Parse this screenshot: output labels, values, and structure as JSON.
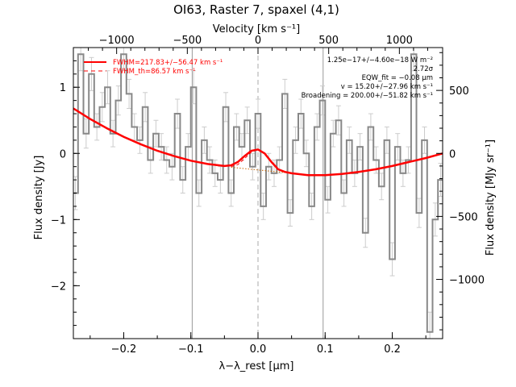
{
  "chart_data": {
    "type": "line",
    "title": "OI63, Raster 7, spaxel (4,1)",
    "xlabel": "λ−λ_rest [μm]",
    "ylabel": "Flux density [Jy]",
    "top_xlabel": "Velocity [km s⁻¹]",
    "right_ylabel": "Flux density [MJy sr⁻¹]",
    "xlim": [
      -0.275,
      0.275
    ],
    "ylim": [
      -2.8,
      1.6
    ],
    "velocity_lim": [
      -1306,
      1306
    ],
    "right_ylim": [
      -1470,
      840
    ],
    "x_ticks": [
      -0.2,
      -0.1,
      0.0,
      0.1,
      0.2
    ],
    "x_tick_labels": [
      "−0.2",
      "−0.1",
      "0.0",
      "0.1",
      "0.2"
    ],
    "y_ticks": [
      -2,
      -1,
      0,
      1
    ],
    "y_tick_labels": [
      "−2",
      "−1",
      "0",
      "1"
    ],
    "velocity_ticks": [
      -1000,
      -500,
      0,
      500,
      1000
    ],
    "velocity_tick_labels": [
      "−1000",
      "−500",
      "0",
      "500",
      "1000"
    ],
    "right_ticks": [
      -1000,
      -500,
      0,
      500
    ],
    "right_tick_labels": [
      "−1000",
      "−500",
      "0",
      "500"
    ],
    "vertical_lines": [
      -0.098,
      0.0,
      0.097
    ],
    "legend": [
      {
        "label": "FWHM=217.83+/−56.47 km s⁻¹",
        "style": "solid",
        "color": "#ff0000"
      },
      {
        "label": "FWHM_th=86.57 km s⁻¹",
        "style": "dashed",
        "color": "#ff0000"
      }
    ],
    "annotations": [
      "1.25e−17+/−4.60e−18 W m⁻²",
      "2.72σ",
      "EQW_fit = −0.08 μm",
      "v = 15.20+/−27.96 km s⁻¹",
      "Broadening = 200.00+/−51.82 km s⁻¹"
    ],
    "series": [
      {
        "name": "spectrum",
        "style": "steps",
        "color": "#888888",
        "x": [
          -0.272,
          -0.264,
          -0.256,
          -0.248,
          -0.24,
          -0.232,
          -0.224,
          -0.216,
          -0.208,
          -0.2,
          -0.192,
          -0.184,
          -0.176,
          -0.168,
          -0.16,
          -0.152,
          -0.144,
          -0.136,
          -0.128,
          -0.12,
          -0.112,
          -0.104,
          -0.096,
          -0.088,
          -0.08,
          -0.072,
          -0.064,
          -0.056,
          -0.048,
          -0.04,
          -0.032,
          -0.024,
          -0.016,
          -0.008,
          0.0,
          0.008,
          0.016,
          0.024,
          0.032,
          0.04,
          0.048,
          0.056,
          0.064,
          0.072,
          0.08,
          0.088,
          0.096,
          0.104,
          0.112,
          0.12,
          0.128,
          0.136,
          0.144,
          0.152,
          0.16,
          0.168,
          0.176,
          0.184,
          0.192,
          0.2,
          0.208,
          0.216,
          0.224,
          0.232,
          0.24,
          0.248,
          0.256,
          0.264,
          0.272
        ],
        "y": [
          -0.6,
          1.5,
          0.3,
          1.2,
          0.4,
          0.7,
          1.0,
          0.3,
          0.8,
          1.5,
          0.9,
          0.4,
          0.2,
          0.7,
          -0.1,
          0.3,
          0.1,
          -0.1,
          -0.2,
          0.6,
          -0.4,
          0.1,
          1.0,
          -0.6,
          0.2,
          -0.1,
          -0.3,
          -0.4,
          0.7,
          -0.6,
          0.4,
          0.1,
          0.5,
          -0.2,
          0.6,
          -0.8,
          -0.2,
          -0.3,
          -0.1,
          0.9,
          -0.9,
          0.2,
          0.6,
          0.0,
          -0.8,
          0.4,
          0.8,
          -0.7,
          0.3,
          0.5,
          -0.6,
          0.2,
          -0.3,
          0.1,
          -1.2,
          0.4,
          -0.1,
          -0.5,
          0.2,
          -1.6,
          0.1,
          -0.3,
          -0.1,
          1.5,
          -0.9,
          0.2,
          -2.7,
          -1.0,
          -0.4
        ],
        "errors": [
          0.25,
          0.25,
          0.22,
          0.25,
          0.2,
          0.22,
          0.25,
          0.2,
          0.22,
          0.25,
          0.22,
          0.2,
          0.2,
          0.22,
          0.2,
          0.2,
          0.2,
          0.2,
          0.2,
          0.22,
          0.2,
          0.2,
          0.25,
          0.2,
          0.2,
          0.2,
          0.2,
          0.2,
          0.22,
          0.2,
          0.2,
          0.2,
          0.2,
          0.2,
          0.22,
          0.2,
          0.2,
          0.2,
          0.2,
          0.22,
          0.2,
          0.2,
          0.22,
          0.2,
          0.2,
          0.2,
          0.22,
          0.2,
          0.2,
          0.22,
          0.2,
          0.2,
          0.2,
          0.2,
          0.22,
          0.2,
          0.2,
          0.2,
          0.2,
          0.25,
          0.2,
          0.2,
          0.2,
          0.25,
          0.22,
          0.2,
          0.3,
          0.25,
          0.25
        ]
      },
      {
        "name": "fit",
        "style": "solid",
        "color": "#ff0000",
        "x": [
          -0.275,
          -0.25,
          -0.225,
          -0.2,
          -0.175,
          -0.15,
          -0.125,
          -0.1,
          -0.075,
          -0.05,
          -0.04,
          -0.03,
          -0.02,
          -0.01,
          0.0,
          0.01,
          0.02,
          0.03,
          0.04,
          0.05,
          0.075,
          0.1,
          0.125,
          0.15,
          0.175,
          0.2,
          0.225,
          0.25,
          0.275
        ],
        "y": [
          0.68,
          0.52,
          0.38,
          0.25,
          0.14,
          0.04,
          -0.04,
          -0.11,
          -0.16,
          -0.19,
          -0.18,
          -0.13,
          -0.04,
          0.04,
          0.06,
          0.0,
          -0.13,
          -0.24,
          -0.28,
          -0.3,
          -0.33,
          -0.33,
          -0.31,
          -0.28,
          -0.24,
          -0.19,
          -0.13,
          -0.07,
          0.0
        ]
      },
      {
        "name": "continuum",
        "style": "dotted",
        "color": "#c86400",
        "x": [
          -0.04,
          -0.03,
          -0.02,
          -0.01,
          0.0,
          0.01,
          0.02,
          0.03,
          0.04
        ],
        "y": [
          -0.21,
          -0.22,
          -0.23,
          -0.24,
          -0.25,
          -0.26,
          -0.27,
          -0.28,
          -0.29
        ]
      },
      {
        "name": "line_component",
        "style": "dashed",
        "color": "#ff0000",
        "x": [
          -0.04,
          -0.03,
          -0.02,
          -0.01,
          0.0,
          0.01,
          0.02,
          0.03,
          0.04
        ],
        "y": [
          -0.2,
          -0.17,
          -0.08,
          0.02,
          0.06,
          0.0,
          -0.12,
          -0.24,
          -0.29
        ]
      }
    ]
  }
}
